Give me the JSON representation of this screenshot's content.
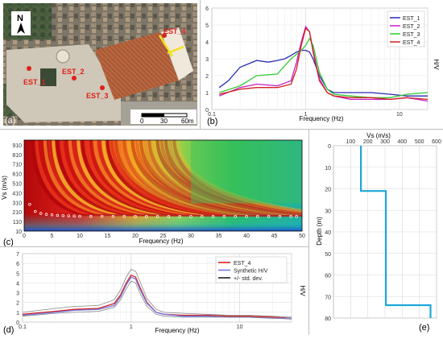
{
  "map": {
    "north_label": "N",
    "stations": [
      "EST_1",
      "EST_2",
      "EST_3",
      "EST_4"
    ],
    "scale_ticks": [
      "0",
      "30",
      "60m"
    ],
    "panel_letter": "(a)",
    "station_color": "#e0201a",
    "arrow_color": "#f5e21a"
  },
  "chart_data": [
    {
      "id": "b",
      "type": "line",
      "panel_letter": "(b)",
      "xlabel": "Frequency (Hz)",
      "ylabel": "H/V",
      "xscale": "log",
      "xlim": [
        0.1,
        20
      ],
      "ylim": [
        0,
        6
      ],
      "xticks": [
        0.1,
        1,
        10
      ],
      "yticks": [
        0,
        1,
        2,
        3,
        4,
        5,
        6
      ],
      "grid": true,
      "legend_position": "top-right",
      "series": [
        {
          "name": "EST_1",
          "color": "#2b2bb8",
          "x": [
            0.12,
            0.15,
            0.2,
            0.3,
            0.4,
            0.5,
            0.6,
            0.7,
            0.8,
            0.9,
            1.0,
            1.1,
            1.2,
            1.4,
            1.7,
            2,
            3,
            5,
            8,
            12,
            20
          ],
          "y": [
            1.3,
            1.7,
            2.5,
            2.9,
            2.8,
            2.9,
            3.0,
            3.2,
            3.4,
            3.5,
            3.5,
            3.4,
            3.0,
            2.0,
            1.2,
            1.0,
            1.0,
            1.0,
            0.9,
            0.8,
            0.8
          ]
        },
        {
          "name": "EST_2",
          "color": "#c51ec5",
          "x": [
            0.12,
            0.2,
            0.3,
            0.5,
            0.7,
            0.8,
            0.9,
            1.0,
            1.1,
            1.2,
            1.4,
            1.7,
            2,
            3,
            5,
            8,
            12,
            20
          ],
          "y": [
            0.8,
            1.3,
            1.5,
            1.4,
            1.7,
            2.8,
            4.0,
            4.9,
            4.6,
            3.5,
            1.8,
            1.0,
            0.8,
            0.6,
            0.6,
            0.6,
            0.7,
            0.5
          ]
        },
        {
          "name": "EST_3",
          "color": "#33cc33",
          "x": [
            0.12,
            0.2,
            0.3,
            0.5,
            0.7,
            0.9,
            1.0,
            1.1,
            1.2,
            1.4,
            1.7,
            2,
            3,
            5,
            8,
            12,
            20
          ],
          "y": [
            1.0,
            1.4,
            2.0,
            2.1,
            3.0,
            3.5,
            3.8,
            4.2,
            3.8,
            2.2,
            1.2,
            0.9,
            0.8,
            0.7,
            0.7,
            0.9,
            1.0
          ]
        },
        {
          "name": "EST_4",
          "color": "#d42020",
          "x": [
            0.12,
            0.2,
            0.3,
            0.5,
            0.7,
            0.8,
            0.9,
            1.0,
            1.1,
            1.2,
            1.4,
            1.7,
            2,
            3,
            5,
            8,
            12,
            20
          ],
          "y": [
            0.9,
            1.2,
            1.3,
            1.3,
            1.5,
            2.4,
            3.8,
            4.8,
            4.6,
            3.4,
            1.7,
            1.0,
            0.8,
            0.7,
            0.7,
            0.6,
            0.7,
            0.6
          ]
        }
      ]
    },
    {
      "id": "c",
      "type": "heatmap",
      "panel_letter": "(c)",
      "xlabel": "Frequency (Hz)",
      "ylabel": "Vs (m/s)",
      "xlim": [
        0,
        50
      ],
      "ylim": [
        10,
        960
      ],
      "xticks": [
        0,
        5,
        10,
        15,
        20,
        25,
        30,
        35,
        40,
        45,
        50
      ],
      "yticks": [
        10,
        110,
        210,
        310,
        410,
        510,
        610,
        710,
        810,
        910
      ],
      "picked_curve": {
        "color": "#ffffff",
        "x": [
          1,
          2,
          3,
          4,
          5,
          6,
          7,
          8,
          9,
          10,
          12,
          14,
          16,
          18,
          20,
          22,
          24,
          26,
          28,
          30,
          32,
          34,
          36,
          38,
          40,
          42,
          44,
          46,
          48,
          49
        ],
        "y": [
          290,
          215,
          195,
          185,
          180,
          175,
          172,
          170,
          168,
          166,
          165,
          165,
          164,
          164,
          164,
          163,
          163,
          163,
          163,
          163,
          163,
          163,
          163,
          163,
          163,
          163,
          163,
          163,
          163,
          163
        ]
      }
    },
    {
      "id": "d",
      "type": "line",
      "panel_letter": "(d)",
      "xlabel": "Frequency (Hz)",
      "ylabel": "H/V",
      "xscale": "log",
      "xlim": [
        0.1,
        30
      ],
      "ylim": [
        0,
        7
      ],
      "xticks": [
        0.1,
        1,
        10
      ],
      "yticks": [
        0,
        1,
        2,
        3,
        4,
        5,
        6,
        7
      ],
      "grid": true,
      "legend_position": "top-right",
      "series": [
        {
          "name": "EST_4",
          "color": "#d42020",
          "x": [
            0.1,
            0.2,
            0.3,
            0.5,
            0.7,
            0.8,
            0.9,
            1.0,
            1.1,
            1.2,
            1.4,
            1.7,
            2,
            3,
            5,
            8,
            12,
            20,
            30
          ],
          "y": [
            0.8,
            1.1,
            1.3,
            1.4,
            1.9,
            2.8,
            4.0,
            4.8,
            4.6,
            3.6,
            2.0,
            1.0,
            0.8,
            0.7,
            0.7,
            0.6,
            0.6,
            0.5,
            0.4
          ]
        },
        {
          "name": "Synthetic H/V",
          "color": "#7777dd",
          "x": [
            0.1,
            0.2,
            0.3,
            0.5,
            0.7,
            0.8,
            0.9,
            1.0,
            1.1,
            1.2,
            1.4,
            1.7,
            2,
            3,
            5,
            8,
            12,
            20,
            30
          ],
          "y": [
            0.7,
            1.0,
            1.2,
            1.3,
            1.7,
            2.6,
            3.8,
            4.6,
            4.4,
            3.4,
            1.9,
            1.0,
            0.8,
            0.6,
            0.6,
            0.5,
            0.5,
            0.4,
            0.4
          ]
        },
        {
          "name": "+/- std. dev.",
          "color": "#888888",
          "x": [
            0.1,
            0.2,
            0.3,
            0.5,
            0.7,
            0.8,
            0.9,
            1.0,
            1.1,
            1.2,
            1.4,
            1.7,
            2,
            3,
            5,
            8,
            12,
            20,
            30
          ],
          "y": [
            1.0,
            1.4,
            1.6,
            1.7,
            2.3,
            3.3,
            4.6,
            5.4,
            5.2,
            4.2,
            2.4,
            1.3,
            1.0,
            0.9,
            0.8,
            0.7,
            0.7,
            0.6,
            0.5
          ]
        },
        {
          "name": "",
          "color": "#888888",
          "x": [
            0.1,
            0.2,
            0.3,
            0.5,
            0.7,
            0.8,
            0.9,
            1.0,
            1.1,
            1.2,
            1.4,
            1.7,
            2,
            3,
            5,
            8,
            12,
            20,
            30
          ],
          "y": [
            0.6,
            0.9,
            1.0,
            1.1,
            1.5,
            2.3,
            3.4,
            4.2,
            4.0,
            3.0,
            1.6,
            0.8,
            0.6,
            0.5,
            0.5,
            0.5,
            0.5,
            0.4,
            0.3
          ]
        }
      ]
    },
    {
      "id": "e",
      "type": "line",
      "panel_letter": "(e)",
      "xlabel": "Vs (m/s)",
      "ylabel": "Depth (m)",
      "xlim": [
        0,
        600
      ],
      "ylim": [
        0,
        80
      ],
      "xticks": [
        100,
        200,
        300,
        400,
        500,
        600
      ],
      "yticks": [
        0,
        10,
        20,
        30,
        40,
        50,
        60,
        70,
        80
      ],
      "grid": true,
      "series": [
        {
          "name": "",
          "color": "#1ea7d8",
          "x": [
            160,
            160,
            305,
            305,
            565,
            565
          ],
          "y": [
            0,
            21,
            21,
            74,
            74,
            80
          ]
        }
      ]
    }
  ],
  "legend_d_colors": [
    "#d42020",
    "#7777dd",
    "#222222"
  ]
}
